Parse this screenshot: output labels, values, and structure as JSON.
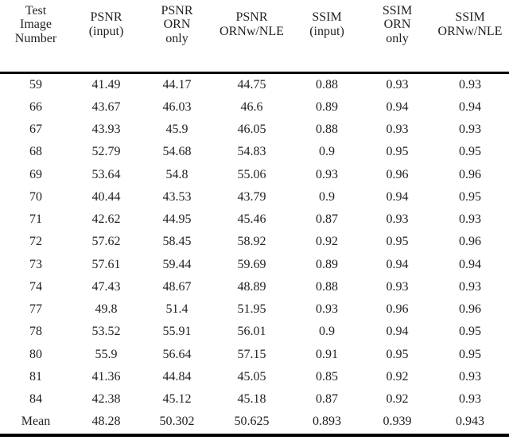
{
  "page": {
    "background_color": "#ffffff",
    "text_color": "#1f1f1f",
    "rule_color": "#000000"
  },
  "table": {
    "columns": [
      {
        "id": "test-image-number",
        "label": "Test\nImage\nNumber"
      },
      {
        "id": "psnr-input",
        "label": "PSNR\n(input)"
      },
      {
        "id": "psnr-orn-only",
        "label": "PSNR\nORN\nonly"
      },
      {
        "id": "psnr-ornw-nle",
        "label": "PSNR\nORNw/NLE"
      },
      {
        "id": "ssim-input",
        "label": "SSIM\n(input)"
      },
      {
        "id": "ssim-orn-only",
        "label": "SSIM\nORN\nonly"
      },
      {
        "id": "ssim-ornw-nle",
        "label": "SSIM\nORNw/NLE"
      }
    ],
    "rows": [
      [
        "59",
        "41.49",
        "44.17",
        "44.75",
        "0.88",
        "0.93",
        "0.93"
      ],
      [
        "66",
        "43.67",
        "46.03",
        "46.6",
        "0.89",
        "0.94",
        "0.94"
      ],
      [
        "67",
        "43.93",
        "45.9",
        "46.05",
        "0.88",
        "0.93",
        "0.93"
      ],
      [
        "68",
        "52.79",
        "54.68",
        "54.83",
        "0.9",
        "0.95",
        "0.95"
      ],
      [
        "69",
        "53.64",
        "54.8",
        "55.06",
        "0.93",
        "0.96",
        "0.96"
      ],
      [
        "70",
        "40.44",
        "43.53",
        "43.79",
        "0.9",
        "0.94",
        "0.95"
      ],
      [
        "71",
        "42.62",
        "44.95",
        "45.46",
        "0.87",
        "0.93",
        "0.93"
      ],
      [
        "72",
        "57.62",
        "58.45",
        "58.92",
        "0.92",
        "0.95",
        "0.96"
      ],
      [
        "73",
        "57.61",
        "59.44",
        "59.69",
        "0.89",
        "0.94",
        "0.94"
      ],
      [
        "74",
        "47.43",
        "48.67",
        "48.89",
        "0.88",
        "0.93",
        "0.93"
      ],
      [
        "77",
        "49.8",
        "51.4",
        "51.95",
        "0.93",
        "0.96",
        "0.96"
      ],
      [
        "78",
        "53.52",
        "55.91",
        "56.01",
        "0.9",
        "0.94",
        "0.95"
      ],
      [
        "80",
        "55.9",
        "56.64",
        "57.15",
        "0.91",
        "0.95",
        "0.95"
      ],
      [
        "81",
        "41.36",
        "44.84",
        "45.05",
        "0.85",
        "0.92",
        "0.93"
      ],
      [
        "84",
        "42.38",
        "45.12",
        "45.18",
        "0.87",
        "0.92",
        "0.93"
      ],
      [
        "Mean",
        "48.28",
        "50.302",
        "50.625",
        "0.893",
        "0.939",
        "0.943"
      ]
    ]
  },
  "chart_data": {
    "type": "table",
    "title": "",
    "columns": [
      "Test Image Number",
      "PSNR (input)",
      "PSNR ORN only",
      "PSNR ORNw/NLE",
      "SSIM (input)",
      "SSIM ORN only",
      "SSIM ORNw/NLE"
    ],
    "rows": [
      [
        59,
        41.49,
        44.17,
        44.75,
        0.88,
        0.93,
        0.93
      ],
      [
        66,
        43.67,
        46.03,
        46.6,
        0.89,
        0.94,
        0.94
      ],
      [
        67,
        43.93,
        45.9,
        46.05,
        0.88,
        0.93,
        0.93
      ],
      [
        68,
        52.79,
        54.68,
        54.83,
        0.9,
        0.95,
        0.95
      ],
      [
        69,
        53.64,
        54.8,
        55.06,
        0.93,
        0.96,
        0.96
      ],
      [
        70,
        40.44,
        43.53,
        43.79,
        0.9,
        0.94,
        0.95
      ],
      [
        71,
        42.62,
        44.95,
        45.46,
        0.87,
        0.93,
        0.93
      ],
      [
        72,
        57.62,
        58.45,
        58.92,
        0.92,
        0.95,
        0.96
      ],
      [
        73,
        57.61,
        59.44,
        59.69,
        0.89,
        0.94,
        0.94
      ],
      [
        74,
        47.43,
        48.67,
        48.89,
        0.88,
        0.93,
        0.93
      ],
      [
        77,
        49.8,
        51.4,
        51.95,
        0.93,
        0.96,
        0.96
      ],
      [
        78,
        53.52,
        55.91,
        56.01,
        0.9,
        0.94,
        0.95
      ],
      [
        80,
        55.9,
        56.64,
        57.15,
        0.91,
        0.95,
        0.95
      ],
      [
        81,
        41.36,
        44.84,
        45.05,
        0.85,
        0.92,
        0.93
      ],
      [
        84,
        42.38,
        45.12,
        45.18,
        0.87,
        0.92,
        0.93
      ],
      [
        "Mean",
        48.28,
        50.302,
        50.625,
        0.893,
        0.939,
        0.943
      ]
    ]
  }
}
